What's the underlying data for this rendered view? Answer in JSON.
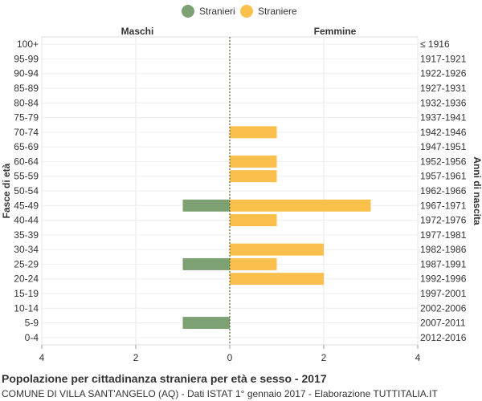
{
  "legend": {
    "stranieri": "Stranieri",
    "straniere": "Straniere"
  },
  "colors": {
    "male": "#7ea174",
    "female": "#fbbf4b"
  },
  "footer": {
    "title": "Popolazione per cittadinanza straniera per età e sesso - 2017",
    "subtitle": "COMUNE DI VILLA SANT'ANGELO (AQ) - Dati ISTAT 1° gennaio 2017 - Elaborazione TUTTITALIA.IT"
  },
  "chart_data": {
    "type": "bar",
    "orientation": "horizontal-pyramid",
    "left_header": "Maschi",
    "right_header": "Femmine",
    "ylabel_left": "Fasce di età",
    "ylabel_right": "Anni di nascita",
    "x_ticks": [
      "4",
      "2",
      "0",
      "2",
      "4"
    ],
    "xlim": [
      -4,
      4
    ],
    "grid": true,
    "legend_position": "top-center",
    "categories": [
      "100+",
      "95-99",
      "90-94",
      "85-89",
      "80-84",
      "75-79",
      "70-74",
      "65-69",
      "60-64",
      "55-59",
      "50-54",
      "45-49",
      "40-44",
      "35-39",
      "30-34",
      "25-29",
      "20-24",
      "15-19",
      "10-14",
      "5-9",
      "0-4"
    ],
    "birth_years": [
      "≤ 1916",
      "1917-1921",
      "1922-1926",
      "1927-1931",
      "1932-1936",
      "1937-1941",
      "1942-1946",
      "1947-1951",
      "1952-1956",
      "1957-1961",
      "1962-1966",
      "1967-1971",
      "1972-1976",
      "1977-1981",
      "1982-1986",
      "1987-1991",
      "1992-1996",
      "1997-2001",
      "2002-2006",
      "2007-2011",
      "2012-2016"
    ],
    "series": [
      {
        "name": "Stranieri",
        "values": [
          0,
          0,
          0,
          0,
          0,
          0,
          0,
          0,
          0,
          0,
          0,
          1,
          0,
          0,
          0,
          1,
          0,
          0,
          0,
          1,
          0
        ]
      },
      {
        "name": "Straniere",
        "values": [
          0,
          0,
          0,
          0,
          0,
          0,
          1,
          0,
          1,
          1,
          0,
          3,
          1,
          0,
          2,
          1,
          2,
          0,
          0,
          0,
          0
        ]
      }
    ]
  }
}
